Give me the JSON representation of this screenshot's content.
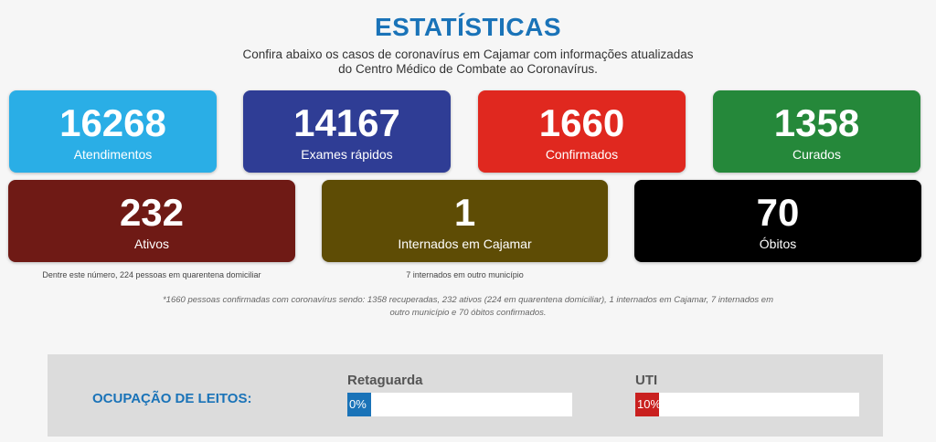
{
  "header": {
    "title": "ESTATÍSTICAS",
    "subtitle_line1": "Confira abaixo os casos de coronavírus em Cajamar com informações atualizadas",
    "subtitle_line2": "do Centro Médico de Combate ao Coronavírus."
  },
  "stats_row1": [
    {
      "value": "16268",
      "label": "Atendimentos",
      "color": "#2aaee6"
    },
    {
      "value": "14167",
      "label": "Exames rápidos",
      "color": "#2f3d95"
    },
    {
      "value": "1660",
      "label": "Confirmados",
      "color": "#e0281f"
    },
    {
      "value": "1358",
      "label": "Curados",
      "color": "#25883a"
    }
  ],
  "stats_row2": [
    {
      "value": "232",
      "label": "Ativos",
      "color": "#6f1a15",
      "note": "Dentre este número, 224 pessoas em quarentena domiciliar"
    },
    {
      "value": "1",
      "label": "Internados em Cajamar",
      "color": "#5e4c05",
      "note": "7 internados em outro município"
    },
    {
      "value": "70",
      "label": "Óbitos",
      "color": "#000000"
    }
  ],
  "footnote": {
    "line1": "*1660 pessoas confirmadas com coronavírus sendo: 1358 recuperadas, 232 ativos (224 em quarentena domiciliar), 1 internados em Cajamar, 7 internados em",
    "line2": "outro município e 70 óbitos confirmados."
  },
  "occupancy": {
    "title": "OCUPAÇÃO DE LEITOS:",
    "bars": [
      {
        "label": "Retaguarda",
        "percent_text": "0%",
        "fraction": 0.0,
        "color": "#1a73b8"
      },
      {
        "label": "UTI",
        "percent_text": "10%",
        "fraction": 0.1,
        "color": "#c9201f"
      }
    ]
  }
}
